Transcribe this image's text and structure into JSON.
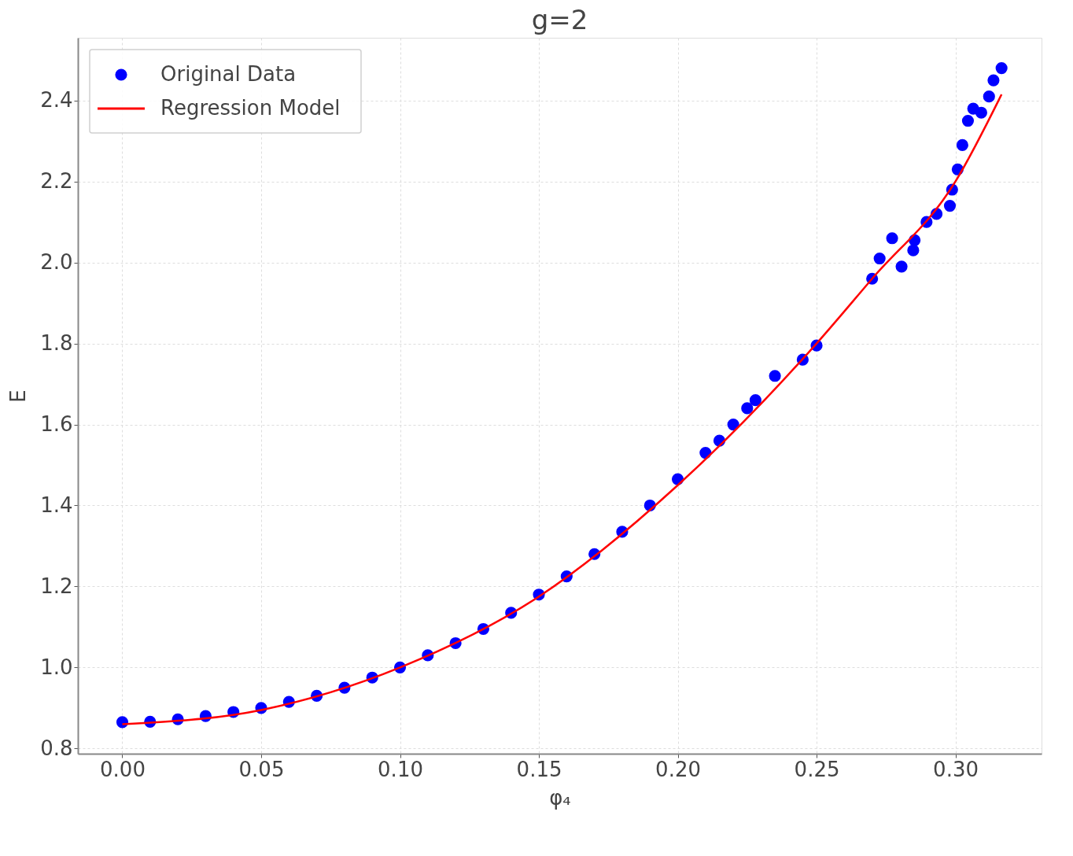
{
  "chart_data": {
    "type": "scatter",
    "title": "g=2",
    "xlabel": "φ₄",
    "ylabel": "E",
    "xlim": [
      -0.016,
      0.331
    ],
    "ylim": [
      0.787,
      2.555
    ],
    "xticks": [
      {
        "value": 0,
        "label": "0.00"
      },
      0.05,
      {
        "value": 0.1,
        "label": "0.10"
      },
      0.15,
      {
        "value": 0.2,
        "label": "0.20"
      },
      0.25,
      {
        "value": 0.3,
        "label": "0.30"
      }
    ],
    "yticks": [
      0.8,
      {
        "value": 1.0,
        "label": "1.0"
      },
      1.2,
      1.4,
      1.6,
      1.8,
      {
        "value": 2.0,
        "label": "2.0"
      },
      2.2,
      2.4
    ],
    "grid": true,
    "legend": "top left",
    "series": [
      {
        "name": "Original Data",
        "color": "#0000ff",
        "marker": "circle",
        "x": [
          0.0,
          0.01,
          0.02,
          0.03,
          0.04,
          0.05,
          0.06,
          0.07,
          0.08,
          0.09,
          0.1,
          0.11,
          0.12,
          0.13,
          0.14,
          0.15,
          0.16,
          0.17,
          0.18,
          0.19,
          0.2,
          0.21,
          0.215,
          0.22,
          0.225,
          0.228,
          0.235,
          0.245,
          0.25,
          0.27,
          0.2727,
          0.2772,
          0.2806,
          0.2848,
          0.2853,
          0.2896,
          0.2932,
          0.298,
          0.2988,
          0.3008,
          0.3025,
          0.3045,
          0.3064,
          0.3093,
          0.3121,
          0.3137,
          0.3166
        ],
        "values": [
          0.865,
          0.866,
          0.872,
          0.88,
          0.89,
          0.9,
          0.915,
          0.93,
          0.95,
          0.975,
          1.0,
          1.03,
          1.06,
          1.095,
          1.135,
          1.18,
          1.225,
          1.28,
          1.335,
          1.4,
          1.465,
          1.53,
          1.56,
          1.6,
          1.64,
          1.66,
          1.72,
          1.76,
          1.795,
          1.96,
          2.01,
          2.06,
          1.99,
          2.03,
          2.055,
          2.1,
          2.12,
          2.14,
          2.18,
          2.23,
          2.29,
          2.35,
          2.38,
          2.37,
          2.41,
          2.45,
          2.48
        ]
      },
      {
        "name": "Regression Model",
        "type": "line",
        "color": "#ff0000",
        "line_style": "solid",
        "x": [
          0.0,
          0.05,
          0.1,
          0.15,
          0.2,
          0.25,
          0.27,
          0.3,
          0.3166
        ],
        "values": [
          0.86,
          0.895,
          1.0,
          1.175,
          1.45,
          1.8,
          1.96,
          2.2,
          2.415
        ]
      }
    ]
  }
}
